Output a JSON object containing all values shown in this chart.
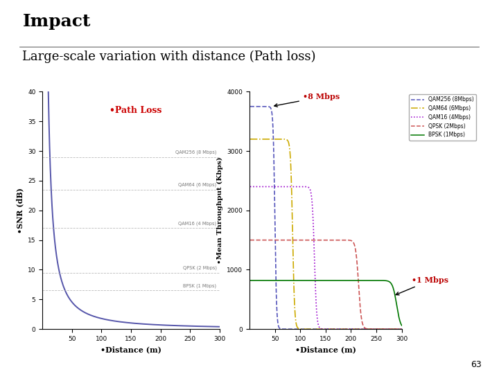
{
  "title": "Impact",
  "subtitle": "Large-scale variation with distance (Path loss)",
  "background_color": "#ffffff",
  "left_plot": {
    "title_color": "#cc0000",
    "xlim": [
      0,
      300
    ],
    "ylim": [
      0,
      40
    ],
    "curve_color": "#5555aa",
    "snr_thresholds": [
      {
        "snr": 29.0,
        "label": "QAM256 (8 Mbps)"
      },
      {
        "snr": 23.5,
        "label": "QAM64 (6 Mbps)"
      },
      {
        "snr": 17.0,
        "label": "QAM16 (4 Mbps)"
      },
      {
        "snr": 9.5,
        "label": "QPSK (2 Mbps)"
      },
      {
        "snr": 6.5,
        "label": "BPSK (1 Mbps)"
      }
    ]
  },
  "right_plot": {
    "xlim": [
      0,
      300
    ],
    "ylim": [
      0,
      4000
    ],
    "series": [
      {
        "label": "QAM256 (8Mbps)",
        "color": "#5555bb",
        "linestyle": "--",
        "throughput": 3750,
        "cutoff": 50,
        "steepness": 0.6
      },
      {
        "label": "QAM64 (6Mbps)",
        "color": "#ccaa00",
        "linestyle": "-.",
        "throughput": 3200,
        "cutoff": 85,
        "steepness": 0.5
      },
      {
        "label": "QAM16 (4Mbps)",
        "color": "#9900cc",
        "linestyle": ":",
        "throughput": 2400,
        "cutoff": 128,
        "steepness": 0.45
      },
      {
        "label": "QPSK (2Mbps)",
        "color": "#cc5555",
        "linestyle": "--",
        "throughput": 1500,
        "cutoff": 215,
        "steepness": 0.35
      },
      {
        "label": "BPSK (1Mbps)",
        "color": "#007700",
        "linestyle": "-",
        "throughput": 820,
        "cutoff": 290,
        "steepness": 0.25
      }
    ]
  },
  "page_number": "63"
}
